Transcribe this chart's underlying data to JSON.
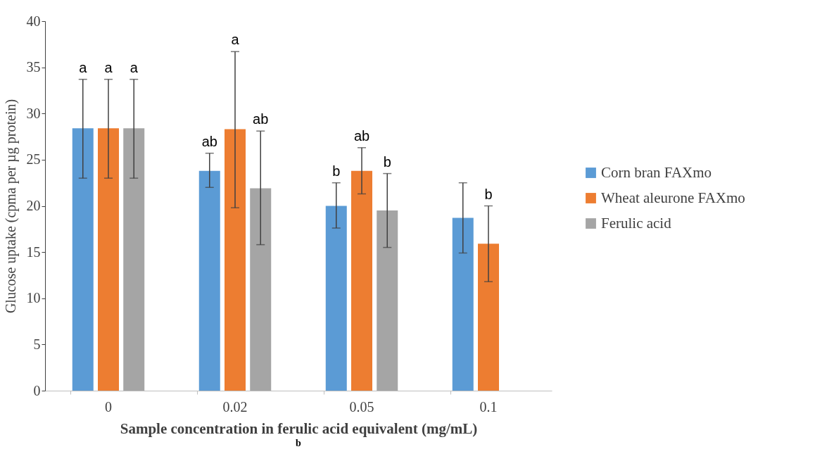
{
  "chart_data": {
    "type": "bar",
    "xlabel": "Sample concentration in ferulic acid equivalent (mg/mL)",
    "ylabel": "Glucose uptake (cpma per µg protein)",
    "categories": [
      "0",
      "0.02",
      "0.05",
      "0.1"
    ],
    "series": [
      {
        "name": "Corn bran FAXmo",
        "color": "#5b9bd5",
        "values": [
          28.4,
          23.8,
          20.0,
          18.7
        ],
        "errors": [
          [
            23.0,
            33.7
          ],
          [
            22.0,
            25.7
          ],
          [
            17.6,
            22.5
          ],
          [
            14.9,
            22.5
          ]
        ]
      },
      {
        "name": "Wheat aleurone FAXmo",
        "color": "#ed7d31",
        "values": [
          28.4,
          28.3,
          23.8,
          15.9
        ],
        "errors": [
          [
            23.0,
            33.7
          ],
          [
            19.8,
            36.7
          ],
          [
            21.3,
            26.3
          ],
          [
            11.8,
            20.0
          ]
        ]
      },
      {
        "name": "Ferulic acid",
        "color": "#a5a5a5",
        "values": [
          28.4,
          21.9,
          19.5,
          null
        ],
        "errors": [
          [
            23.0,
            33.7
          ],
          [
            15.8,
            28.1
          ],
          [
            15.5,
            23.5
          ],
          null
        ]
      }
    ],
    "ylim": [
      0,
      40
    ],
    "yticks": [
      0,
      5,
      10,
      15,
      20,
      25,
      30,
      35,
      40
    ],
    "grid": false,
    "legend": "right",
    "annotations": [
      {
        "text": "a",
        "x": "0",
        "y": 33.7
      },
      {
        "text": "ab",
        "x": "0.02",
        "y": 25.7
      },
      {
        "text": "a",
        "x": "0.02",
        "y": 36.7
      },
      {
        "text": "ab",
        "x": "0.02",
        "y": 28.1
      },
      {
        "text": "b",
        "x": "0.05",
        "y": 22.5
      },
      {
        "text": "ab",
        "x": "0.05",
        "y": 26.3
      },
      {
        "text": "b",
        "x": "0.05",
        "y": 23.5
      },
      "b",
      {
        "text": "b",
        "x": "0.1",
        "y": 20.0
      }
    ]
  }
}
